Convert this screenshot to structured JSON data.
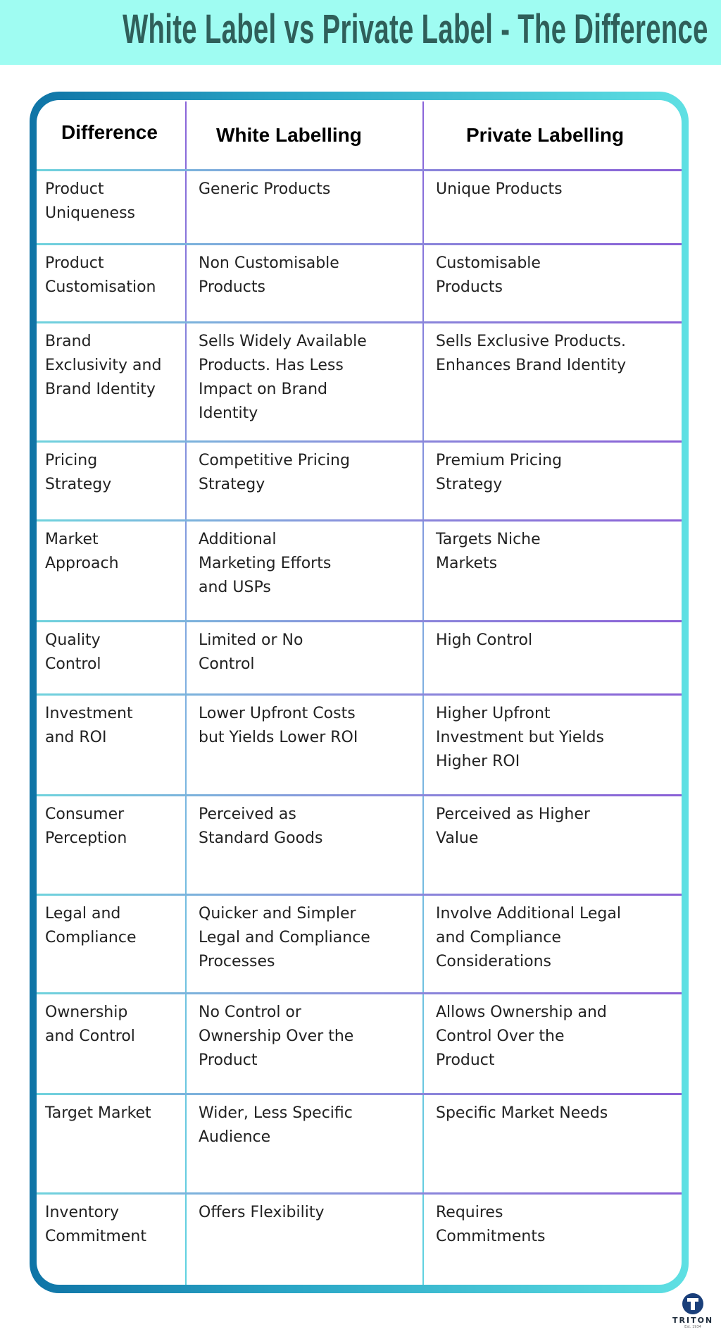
{
  "title": "White Label vs Private Label - The Difference",
  "colors": {
    "header_bg": "#9ffcf2",
    "title": "#2f5f5a",
    "frame_start": "#0f74a6",
    "frame_end": "#5fe0e3",
    "divider": "#8a5fd6"
  },
  "table": {
    "headers": [
      "Difference",
      "White Labelling",
      "Private Labelling"
    ],
    "rows": [
      [
        "Product\nUniqueness",
        "Generic Products",
        "Unique Products"
      ],
      [
        "Product\nCustomisation",
        "Non Customisable\nProducts",
        "Customisable\nProducts"
      ],
      [
        "Brand\nExclusivity and\nBrand Identity",
        "Sells Widely Available\nProducts. Has Less\nImpact on Brand\nIdentity",
        "Sells Exclusive Products.\nEnhances Brand Identity"
      ],
      [
        "Pricing\nStrategy",
        "Competitive Pricing\nStrategy",
        "Premium Pricing\nStrategy"
      ],
      [
        "Market\nApproach",
        "Additional\nMarketing Efforts\nand USPs",
        "Targets Niche\nMarkets"
      ],
      [
        "Quality\nControl",
        "Limited or No\nControl",
        "High Control"
      ],
      [
        "Investment\nand ROI",
        "Lower Upfront Costs\nbut Yields Lower ROI",
        "Higher Upfront\nInvestment but Yields\nHigher ROI"
      ],
      [
        "Consumer\nPerception",
        "Perceived as\nStandard Goods",
        "Perceived as Higher\nValue"
      ],
      [
        "Legal and\nCompliance",
        "Quicker and Simpler\nLegal and Compliance\nProcesses",
        "Involve Additional Legal\nand Compliance\nConsiderations"
      ],
      [
        "Ownership\nand Control",
        "No Control or\nOwnership Over the\nProduct",
        "Allows Ownership and\nControl Over the\nProduct"
      ],
      [
        "Target Market",
        "Wider, Less Specific\nAudience",
        "Specific Market Needs"
      ],
      [
        "Inventory\nCommitment",
        "Offers Flexibility",
        "Requires\nCommitments"
      ]
    ]
  },
  "logo": {
    "name": "TRITON",
    "tagline": "Est. 1934",
    "icon": "triton-t-logo"
  }
}
